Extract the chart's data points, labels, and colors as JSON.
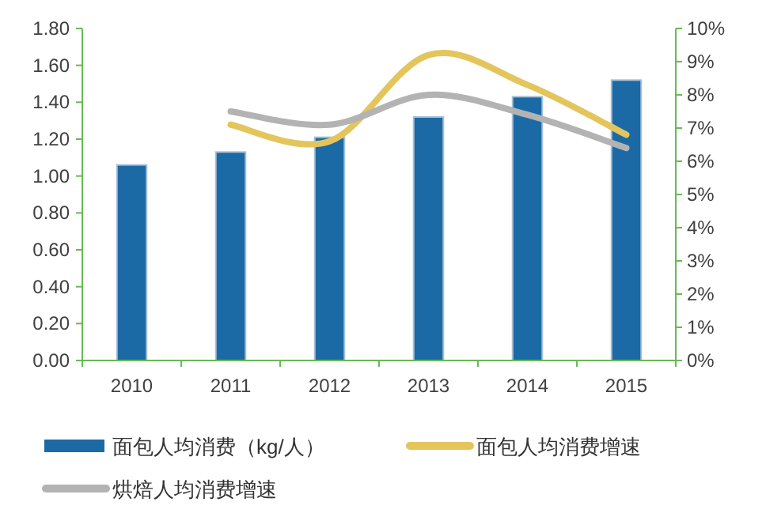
{
  "chart_data": {
    "type": "bar",
    "categories": [
      "2010",
      "2011",
      "2012",
      "2013",
      "2014",
      "2015"
    ],
    "series": [
      {
        "name": "面包人均消费（kg/人）",
        "color": "#1b6aa5",
        "values": [
          1.06,
          1.13,
          1.21,
          1.32,
          1.43,
          1.52
        ]
      },
      {
        "name": "面包人均消费增速",
        "type": "line",
        "axis": "y2",
        "color": "#e3c55c",
        "values": [
          null,
          7.1,
          6.6,
          9.2,
          8.3,
          6.8
        ]
      },
      {
        "name": "烘焙人均消费增速",
        "type": "line",
        "axis": "y2",
        "color": "#b3b3b3",
        "values": [
          null,
          7.5,
          7.1,
          8.0,
          7.4,
          6.4
        ]
      }
    ],
    "ylim": [
      0,
      1.8
    ],
    "yticks": [
      {
        "value": 0,
        "label": "0.00"
      },
      {
        "value": 0.2,
        "label": "0.20"
      },
      {
        "value": 0.4,
        "label": "0.40"
      },
      {
        "value": 0.6,
        "label": "0.60"
      },
      {
        "value": 0.8,
        "label": "0.80"
      },
      {
        "value": 1.0,
        "label": "1.00"
      },
      {
        "value": 1.2,
        "label": "1.20"
      },
      {
        "value": 1.4,
        "label": "1.40"
      },
      {
        "value": 1.6,
        "label": "1.60"
      },
      {
        "value": 1.8,
        "label": "1.80"
      }
    ],
    "y2lim": [
      0,
      10
    ],
    "y2ticks": [
      {
        "value": 0,
        "label": "0%"
      },
      {
        "value": 1,
        "label": "1%"
      },
      {
        "value": 2,
        "label": "2%"
      },
      {
        "value": 3,
        "label": "3%"
      },
      {
        "value": 4,
        "label": "4%"
      },
      {
        "value": 5,
        "label": "5%"
      },
      {
        "value": 6,
        "label": "6%"
      },
      {
        "value": 7,
        "label": "7%"
      },
      {
        "value": 8,
        "label": "8%"
      },
      {
        "value": 9,
        "label": "9%"
      },
      {
        "value": 10,
        "label": "10%"
      }
    ],
    "grid": false,
    "legend": "bottom",
    "marker": "none",
    "line_style": "solid"
  }
}
